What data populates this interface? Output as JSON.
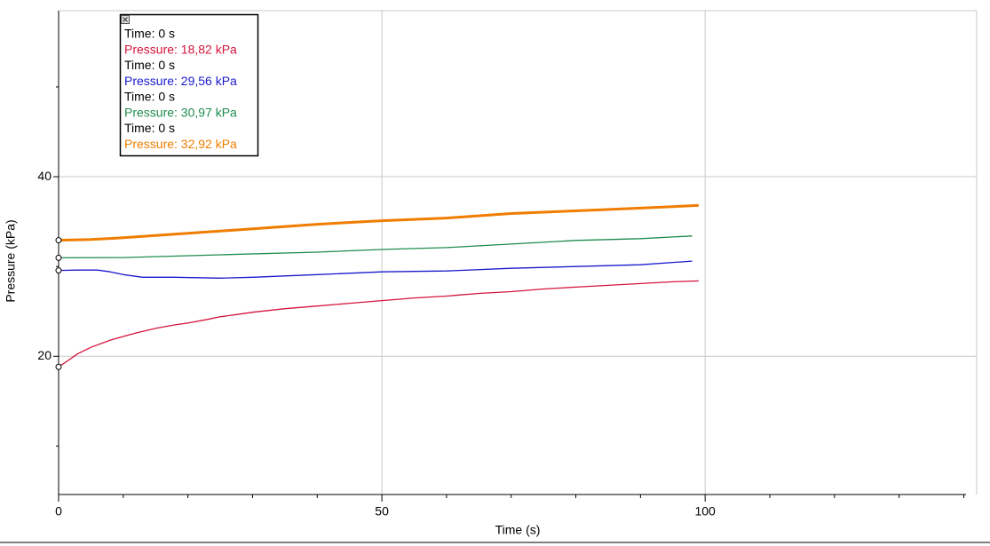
{
  "chart_data": {
    "type": "line",
    "x_label": "Time (s)",
    "y_label": "Pressure (kPa)",
    "xlim": [
      0,
      142
    ],
    "ylim": [
      4.6,
      58.5
    ],
    "xticks": [
      0,
      50,
      100
    ],
    "yticks": [
      20,
      40
    ],
    "x_minor_ticks": [
      10,
      20,
      30,
      40,
      60,
      70,
      80,
      90,
      110,
      120,
      130,
      140
    ],
    "y_minor_ticks": [
      10,
      30,
      50
    ],
    "grid": true,
    "series": [
      {
        "name": "Pressure red",
        "color": "#d4143c",
        "width": 1.3,
        "x": [
          0,
          1,
          3,
          5,
          8,
          10,
          12,
          15,
          18,
          20,
          23,
          25,
          28,
          30,
          35,
          40,
          45,
          50,
          55,
          60,
          65,
          70,
          75,
          80,
          85,
          90,
          95,
          99
        ],
        "values": [
          18.82,
          19.3,
          20.3,
          21.0,
          21.8,
          22.2,
          22.6,
          23.1,
          23.5,
          23.7,
          24.1,
          24.4,
          24.7,
          24.9,
          25.3,
          25.6,
          25.9,
          26.2,
          26.5,
          26.7,
          27.0,
          27.2,
          27.5,
          27.7,
          27.9,
          28.1,
          28.3,
          28.4
        ]
      },
      {
        "name": "Pressure blue",
        "color": "#1a1acc",
        "width": 1.3,
        "x": [
          0,
          3,
          6,
          8,
          10,
          13,
          18,
          25,
          30,
          40,
          50,
          60,
          70,
          80,
          90,
          98
        ],
        "values": [
          29.56,
          29.6,
          29.6,
          29.4,
          29.1,
          28.8,
          28.8,
          28.7,
          28.8,
          29.1,
          29.4,
          29.5,
          29.8,
          30.0,
          30.2,
          30.6
        ]
      },
      {
        "name": "Pressure green",
        "color": "#1e8c4e",
        "width": 1.3,
        "x": [
          0,
          10,
          25,
          40,
          50,
          60,
          70,
          80,
          90,
          98
        ],
        "values": [
          30.97,
          31.0,
          31.3,
          31.6,
          31.9,
          32.1,
          32.5,
          32.9,
          33.1,
          33.4
        ]
      },
      {
        "name": "Pressure orange",
        "color": "#f07d00",
        "width": 3,
        "x": [
          0,
          5,
          10,
          20,
          30,
          40,
          50,
          60,
          70,
          80,
          90,
          99
        ],
        "values": [
          32.92,
          33.0,
          33.2,
          33.7,
          34.2,
          34.7,
          35.1,
          35.4,
          35.9,
          36.2,
          36.5,
          36.8
        ]
      }
    ],
    "tooltip": [
      {
        "time": "Time: 0 s",
        "pressure": "Pressure: 18,82 kPa"
      },
      {
        "time": "Time: 0 s",
        "pressure": "Pressure: 29,56 kPa"
      },
      {
        "time": "Time: 0 s",
        "pressure": "Pressure: 30,97 kPa"
      },
      {
        "time": "Time: 0 s",
        "pressure": "Pressure: 32,92 kPa"
      }
    ]
  }
}
